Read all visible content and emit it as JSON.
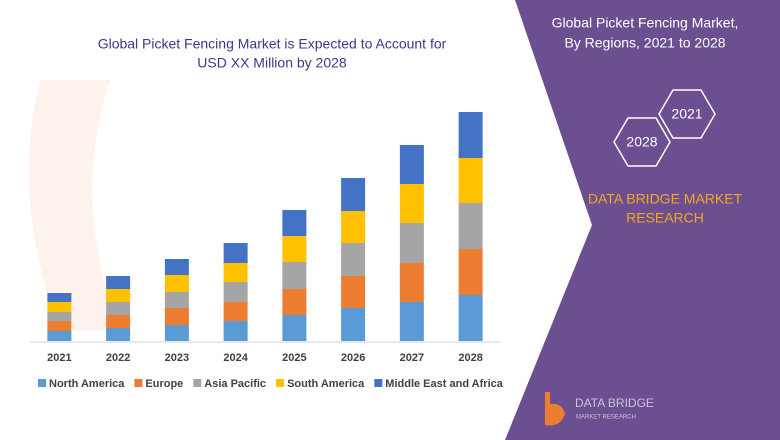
{
  "chart_data": {
    "type": "stacked-bar",
    "title": [
      "Global Picket Fencing Market is Expected to Account for",
      "USD XX Million by 2028"
    ],
    "categories": [
      "2021",
      "2022",
      "2023",
      "2024",
      "2025",
      "2026",
      "2027",
      "2028"
    ],
    "series": [
      {
        "name": "North America",
        "color": "#5b9bd5",
        "values": [
          10,
          13,
          16,
          20,
          26,
          33,
          39,
          46
        ]
      },
      {
        "name": "Europe",
        "color": "#ed7d31",
        "values": [
          10,
          13,
          17,
          19,
          26,
          32,
          39,
          46
        ]
      },
      {
        "name": "Asia Pacific",
        "color": "#a5a5a5",
        "values": [
          9,
          13,
          16,
          20,
          27,
          33,
          40,
          46
        ]
      },
      {
        "name": "South America",
        "color": "#ffc000",
        "values": [
          10,
          13,
          17,
          19,
          26,
          32,
          39,
          45
        ]
      },
      {
        "name": "Middle East and Africa",
        "color": "#4472c4",
        "values": [
          9,
          13,
          16,
          20,
          26,
          33,
          39,
          46
        ]
      }
    ],
    "ylim": [
      0,
      240
    ]
  },
  "right_panel": {
    "title": [
      "Global Picket Fencing Market,",
      "By Regions, 2021 to 2028"
    ],
    "hexagons": [
      "2021",
      "2028"
    ],
    "brand": [
      "DATA BRIDGE MARKET",
      "RESEARCH"
    ]
  },
  "logo": {
    "name": "DATA BRIDGE",
    "tagline": "MARKET RESEARCH"
  }
}
